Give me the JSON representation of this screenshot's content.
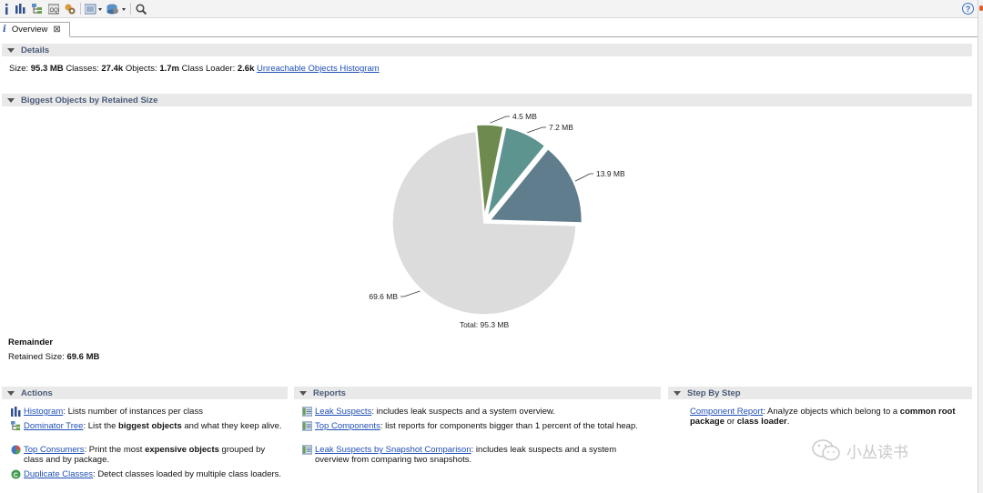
{
  "toolbar": {
    "icons": [
      "info-icon",
      "histogram-icon",
      "dominator-tree-icon",
      "oql-icon",
      "heap-dump-overview-icon",
      "run-report-icon",
      "query-browser-icon",
      "search-icon",
      "help-icon"
    ]
  },
  "tab": {
    "title": "Overview"
  },
  "details": {
    "header": "Details",
    "size_label": "Size:",
    "size_value": "95.3 MB",
    "classes_label": "Classes:",
    "classes_value": "27.4k",
    "objects_label": "Objects:",
    "objects_value": "1.7m",
    "classloader_label": "Class Loader:",
    "classloader_value": "2.6k",
    "histogram_link": "Unreachable Objects Histogram"
  },
  "biggest": {
    "header": "Biggest Objects by Retained Size",
    "remainder_label": "Remainder",
    "retained_label": "Retained Size:",
    "retained_value": "69.6 MB"
  },
  "chart_data": {
    "type": "pie",
    "unit": "MB",
    "slices": [
      {
        "label": "4.5 MB",
        "value": 4.5,
        "color": "#6e8a4e"
      },
      {
        "label": "7.2 MB",
        "value": 7.2,
        "color": "#5e9490"
      },
      {
        "label": "13.9 MB",
        "value": 13.9,
        "color": "#607d8e"
      },
      {
        "label": "69.6 MB",
        "value": 69.6,
        "color": "#dcdcdc"
      }
    ],
    "total_label": "Total: 95.3 MB"
  },
  "actions": {
    "header": "Actions",
    "items": [
      {
        "link": "Histogram",
        "pre": ": Lists number of instances per class",
        "bold": "",
        "post": ""
      },
      {
        "link": "Dominator Tree",
        "pre": ": List the ",
        "bold": "biggest objects",
        "post": " and what they keep alive."
      },
      {
        "link": "Top Consumers",
        "pre": ": Print the most ",
        "bold": "expensive objects",
        "post": " grouped by class and by package."
      },
      {
        "link": "Duplicate Classes",
        "pre": ": Detect classes loaded by multiple class loaders.",
        "bold": "",
        "post": ""
      }
    ]
  },
  "reports": {
    "header": "Reports",
    "items": [
      {
        "link": "Leak Suspects",
        "text": ": includes leak suspects and a system overview."
      },
      {
        "link": "Top Components",
        "text": ": list reports for components bigger than 1 percent of the total heap."
      },
      {
        "link": "Leak Suspects by Snapshot Comparison",
        "text": ": includes leak suspects and a system overview from comparing two snapshots."
      }
    ]
  },
  "stepbystep": {
    "header": "Step By Step",
    "link": "Component Report",
    "pre": ": Analyze objects which belong to a ",
    "bold1": "common root package",
    "mid": " or ",
    "bold2": "class loader",
    "post": "."
  },
  "watermark": {
    "text": "小丛读书"
  }
}
